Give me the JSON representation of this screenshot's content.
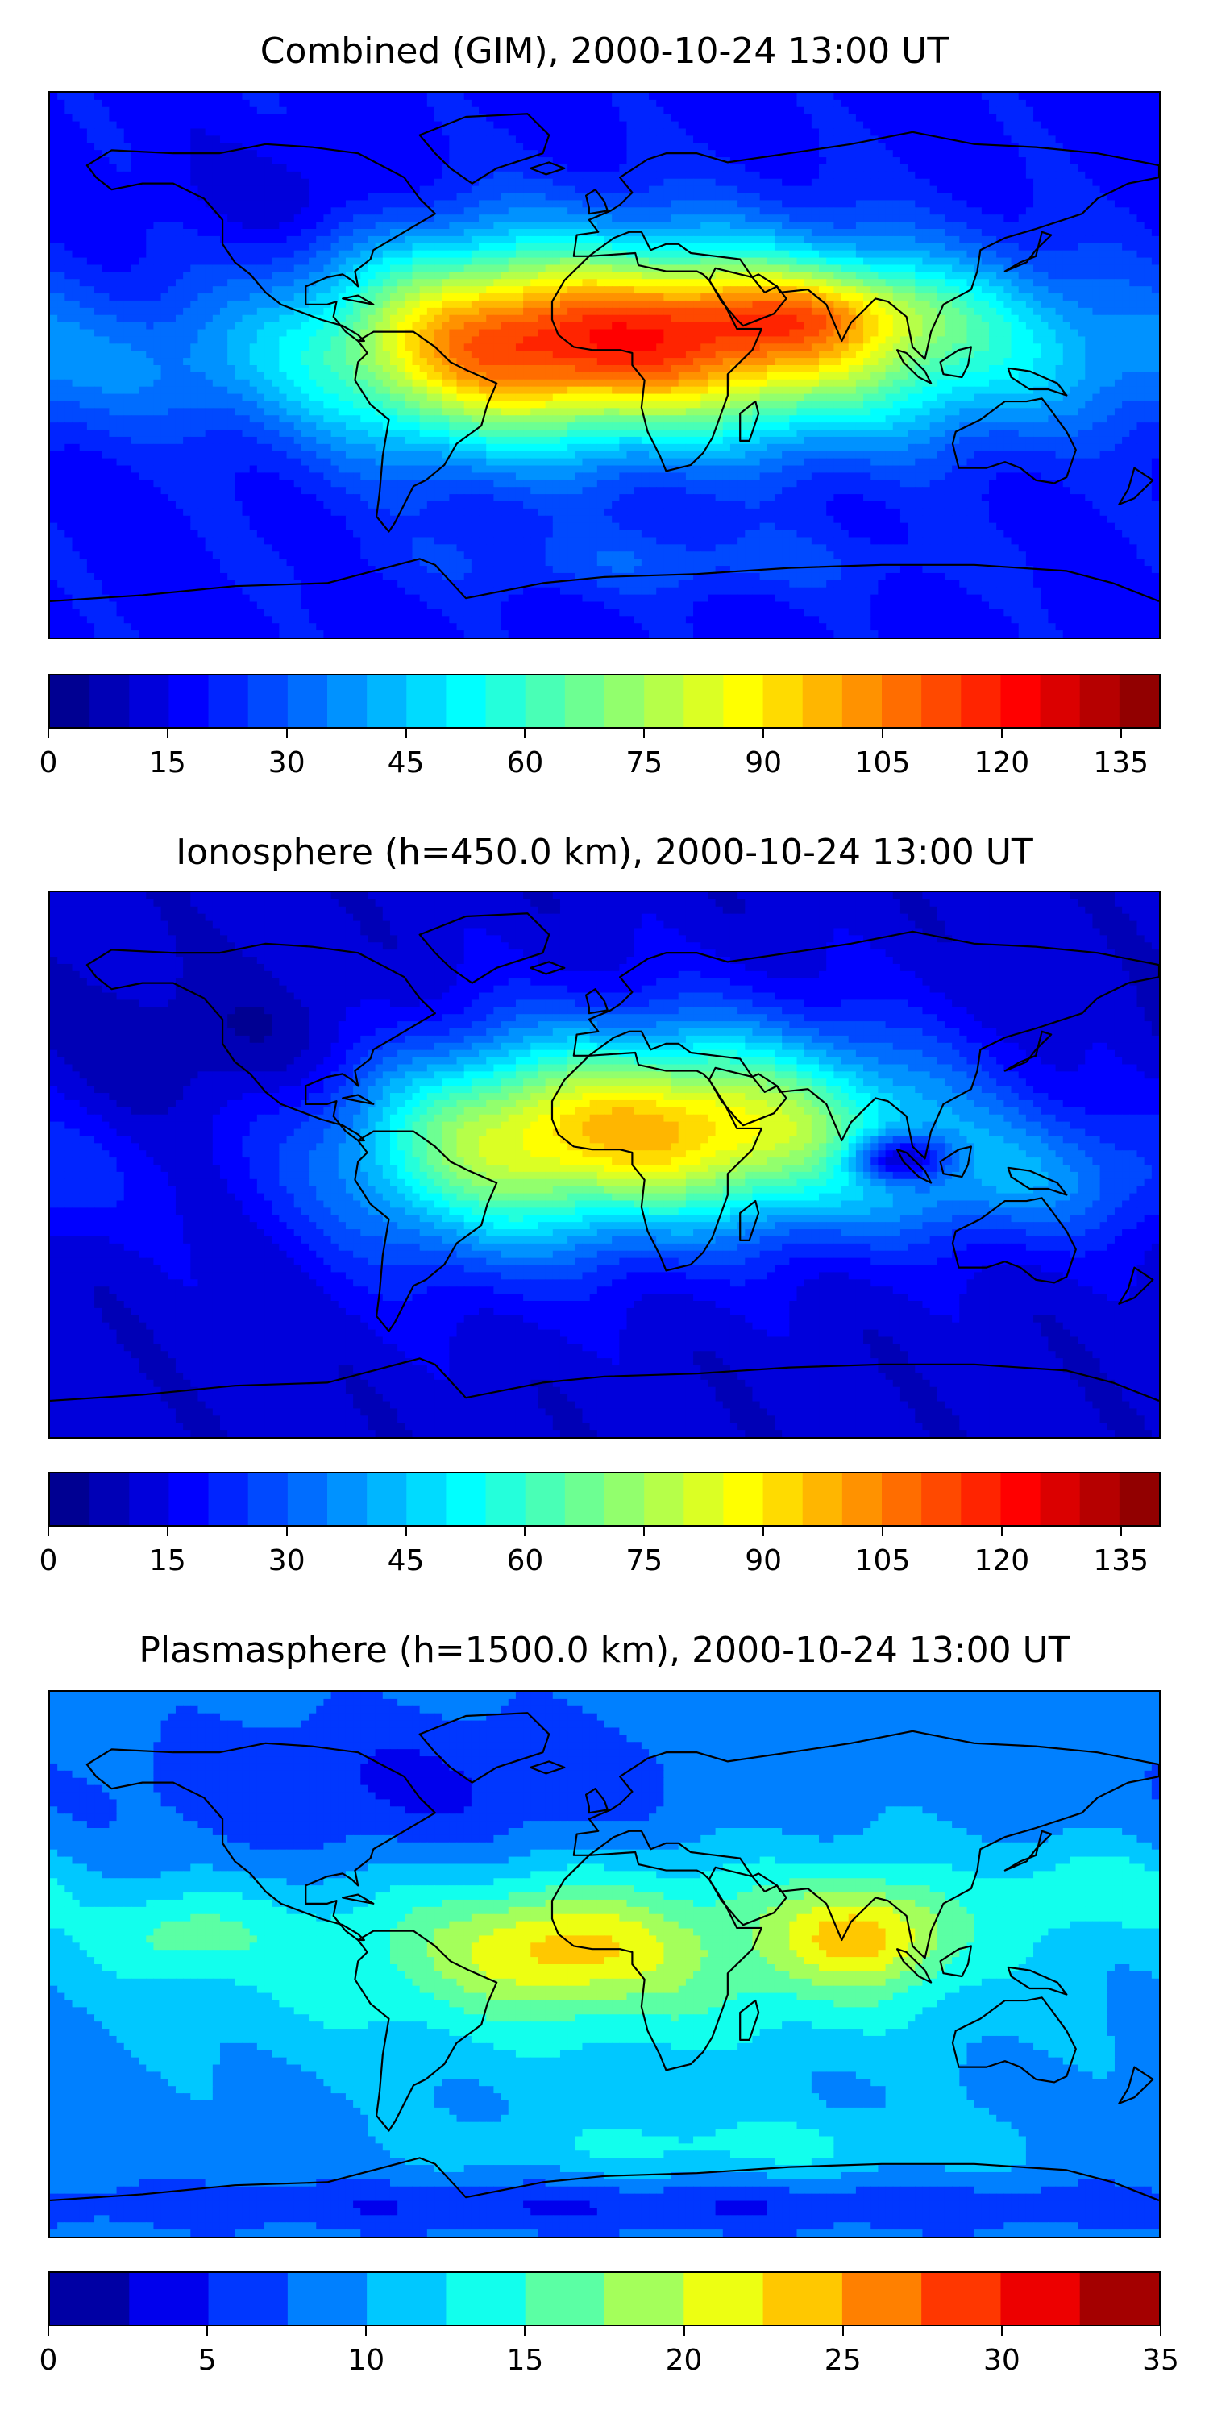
{
  "chart_data": [
    {
      "type": "heatmap",
      "title": "Combined (GIM), 2000-10-24 13:00 UT",
      "xlabel": "",
      "ylabel": "",
      "colorbar": {
        "min": 0,
        "max": 140,
        "step": 5,
        "ticks": [
          0,
          15,
          30,
          45,
          60,
          75,
          90,
          105,
          120,
          135
        ],
        "tick_labels": [
          "0",
          "15",
          "30",
          "45",
          "60",
          "75",
          "90",
          "105",
          "120",
          "135"
        ]
      },
      "field": {
        "background": 18,
        "features": [
          {
            "lon": 15,
            "lat": 8,
            "slon": 60,
            "slat": 22,
            "value": 90
          },
          {
            "lon": 70,
            "lat": 18,
            "slon": 30,
            "slat": 10,
            "value": 25
          },
          {
            "lon": -50,
            "lat": 5,
            "slon": 35,
            "slat": 25,
            "value": 35
          },
          {
            "lon": 120,
            "lat": 5,
            "slon": 50,
            "slat": 20,
            "value": 20
          },
          {
            "lon": -140,
            "lat": 0,
            "slon": 40,
            "slat": 15,
            "value": 12
          },
          {
            "lon": -100,
            "lat": 55,
            "slon": 25,
            "slat": 12,
            "value": -8
          },
          {
            "lon": 20,
            "lat": -65,
            "slon": 60,
            "slat": 8,
            "value": 10
          }
        ]
      }
    },
    {
      "type": "heatmap",
      "title": "Ionosphere  (h=450.0 km), 2000-10-24 13:00 UT",
      "xlabel": "",
      "ylabel": "",
      "colorbar": {
        "min": 0,
        "max": 140,
        "step": 5,
        "ticks": [
          0,
          15,
          30,
          45,
          60,
          75,
          90,
          105,
          120,
          135
        ],
        "tick_labels": [
          "0",
          "15",
          "30",
          "45",
          "60",
          "75",
          "90",
          "105",
          "120",
          "135"
        ]
      },
      "field": {
        "background": 12,
        "features": [
          {
            "lon": 25,
            "lat": 12,
            "slon": 55,
            "slat": 22,
            "value": 80
          },
          {
            "lon": -45,
            "lat": 0,
            "slon": 35,
            "slat": 25,
            "value": 30
          },
          {
            "lon": 140,
            "lat": -5,
            "slon": 40,
            "slat": 15,
            "value": 20
          },
          {
            "lon": 95,
            "lat": 2,
            "slon": 12,
            "slat": 6,
            "value": -40
          },
          {
            "lon": -120,
            "lat": 40,
            "slon": 40,
            "slat": 15,
            "value": -8
          }
        ]
      }
    },
    {
      "type": "heatmap",
      "title": "Plasmasphere (h=1500.0 km), 2000-10-24 13:00 UT",
      "xlabel": "",
      "ylabel": "",
      "colorbar": {
        "min": 0,
        "max": 35,
        "step": 2.5,
        "ticks": [
          0,
          5,
          10,
          15,
          20,
          25,
          30,
          35
        ],
        "tick_labels": [
          "0",
          "5",
          "10",
          "15",
          "20",
          "25",
          "30",
          "35"
        ]
      },
      "field": {
        "background": 9,
        "features": [
          {
            "lon": 0,
            "lat": 5,
            "slon": 90,
            "slat": 25,
            "value": 8
          },
          {
            "lon": -15,
            "lat": 5,
            "slon": 25,
            "slat": 12,
            "value": 7
          },
          {
            "lon": 85,
            "lat": 10,
            "slon": 20,
            "slat": 12,
            "value": 10
          },
          {
            "lon": 160,
            "lat": 25,
            "slon": 20,
            "slat": 10,
            "value": 5
          },
          {
            "lon": -140,
            "lat": 10,
            "slon": 20,
            "slat": 10,
            "value": 5
          },
          {
            "lon": -60,
            "lat": 55,
            "slon": 70,
            "slat": 20,
            "value": -5
          },
          {
            "lon": 0,
            "lat": -80,
            "slon": 180,
            "slat": 6,
            "value": -4
          },
          {
            "lon": 40,
            "lat": -60,
            "slon": 60,
            "slat": 8,
            "value": 4
          }
        ]
      }
    }
  ]
}
